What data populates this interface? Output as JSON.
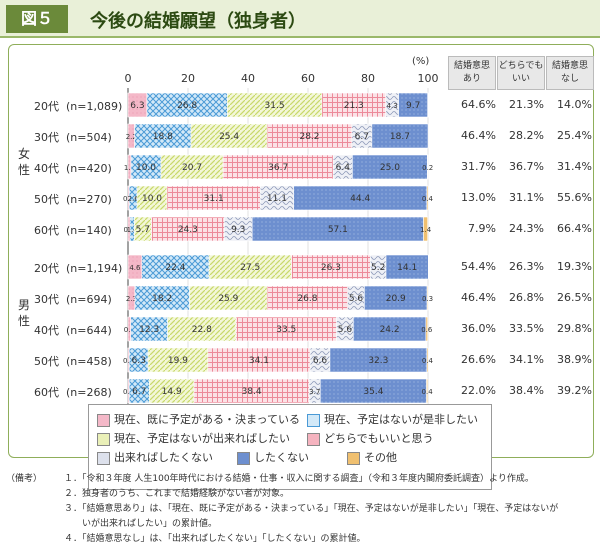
{
  "header": {
    "figure_label": "図５",
    "title": "今後の結婚願望（独身者）"
  },
  "columns": {
    "unit": "(%)",
    "yes": [
      "結婚意思",
      "あり"
    ],
    "neutral": [
      "どちらでも",
      "いい"
    ],
    "no": [
      "結婚意思",
      "なし"
    ]
  },
  "groups": {
    "female": [
      "女",
      "性"
    ],
    "male": [
      "男",
      "性"
    ]
  },
  "colors": {
    "planned": "#f4b8c8",
    "want": "#5aa9e0",
    "ifpossible": "#dce89a",
    "either": "#f08c9c",
    "notmuch": "#b7c0d6",
    "no": "#6d8fcf",
    "other": "#f0c070"
  },
  "chart_data": {
    "type": "stacked-bar-horizontal",
    "xlim": [
      0,
      100
    ],
    "xticks": [
      "0",
      "20",
      "40",
      "60",
      "80",
      "100"
    ],
    "series": [
      {
        "key": "planned",
        "name": "現在、既に予定がある・決まっている"
      },
      {
        "key": "want",
        "name": "現在、予定はないが是非したい"
      },
      {
        "key": "ifpossible",
        "name": "現在、予定はないが出来ればしたい"
      },
      {
        "key": "either",
        "name": "どちらでもいいと思う"
      },
      {
        "key": "notmuch",
        "name": "出来ればしたくない"
      },
      {
        "key": "no",
        "name": "したくない"
      },
      {
        "key": "other",
        "name": "その他"
      }
    ],
    "rows": [
      {
        "age": "20代",
        "n": "(n=1,089)",
        "values": [
          6.3,
          26.8,
          31.5,
          21.3,
          4.3,
          9.7,
          0.1
        ],
        "labels": [
          "6.3",
          "26.8",
          "31.5",
          "21.3",
          "4.3",
          "9.7",
          ""
        ],
        "summary": [
          "64.6%",
          "21.3%",
          "14.0%"
        ]
      },
      {
        "age": "30代",
        "n": "(n=504)",
        "values": [
          2.2,
          18.8,
          25.4,
          28.2,
          6.7,
          18.7,
          0
        ],
        "labels": [
          "2.2",
          "18.8",
          "25.4",
          "28.2",
          "6.7",
          "18.7",
          ""
        ],
        "summary": [
          "46.4%",
          "28.2%",
          "25.4%"
        ]
      },
      {
        "age": "40代",
        "n": "(n=420)",
        "values": [
          1.0,
          10.0,
          20.7,
          36.7,
          6.4,
          25.0,
          0.2
        ],
        "labels": [
          "1.0",
          "10.0",
          "20.7",
          "36.7",
          "6.4",
          "25.0",
          "0.2"
        ],
        "summary": [
          "31.7%",
          "36.7%",
          "31.4%"
        ]
      },
      {
        "age": "50代",
        "n": "(n=270)",
        "values": [
          0.4,
          2.6,
          10.0,
          31.1,
          11.1,
          44.4,
          0.4
        ],
        "labels": [
          "0.4",
          "2.6",
          "10.0",
          "31.1",
          "11.1",
          "44.4",
          "0.4"
        ],
        "summary": [
          "13.0%",
          "31.1%",
          "55.6%"
        ]
      },
      {
        "age": "60代",
        "n": "(n=140)",
        "values": [
          0.7,
          1.4,
          5.7,
          24.3,
          9.3,
          57.1,
          1.4
        ],
        "labels": [
          "0.7",
          "1.4",
          "5.7",
          "24.3",
          "9.3",
          "57.1",
          "1.4"
        ],
        "summary": [
          "7.9%",
          "24.3%",
          "66.4%"
        ]
      },
      {
        "age": "20代",
        "n": "(n=1,194)",
        "values": [
          4.6,
          22.4,
          27.5,
          26.3,
          5.2,
          14.1,
          0
        ],
        "labels": [
          "4.6",
          "22.4",
          "27.5",
          "26.3",
          "5.2",
          "14.1",
          ""
        ],
        "summary": [
          "54.4%",
          "26.3%",
          "19.3%"
        ]
      },
      {
        "age": "30代",
        "n": "(n=694)",
        "values": [
          2.3,
          18.2,
          25.9,
          26.8,
          5.6,
          20.9,
          0.3
        ],
        "labels": [
          "2.3",
          "18.2",
          "25.9",
          "26.8",
          "5.6",
          "20.9",
          "0.3"
        ],
        "summary": [
          "46.4%",
          "26.8%",
          "26.5%"
        ]
      },
      {
        "age": "40代",
        "n": "(n=644)",
        "values": [
          0.9,
          12.3,
          22.8,
          33.5,
          5.6,
          24.2,
          0.6
        ],
        "labels": [
          "0.9",
          "12.3",
          "22.8",
          "33.5",
          "5.6",
          "24.2",
          "0.6"
        ],
        "summary": [
          "36.0%",
          "33.5%",
          "29.8%"
        ]
      },
      {
        "age": "50代",
        "n": "(n=458)",
        "values": [
          0.4,
          6.3,
          19.9,
          34.1,
          6.6,
          32.3,
          0.4
        ],
        "labels": [
          "0.4",
          "6.3",
          "19.9",
          "34.1",
          "6.6",
          "32.3",
          "0.4"
        ],
        "summary": [
          "26.6%",
          "34.1%",
          "38.9%"
        ]
      },
      {
        "age": "60代",
        "n": "(n=268)",
        "values": [
          0.4,
          6.7,
          14.9,
          38.4,
          3.7,
          35.4,
          0.4
        ],
        "labels": [
          "0.4",
          "6.7",
          "14.9",
          "38.4",
          "3.7",
          "35.4",
          "0.4"
        ],
        "summary": [
          "22.0%",
          "38.4%",
          "39.2%"
        ]
      }
    ]
  },
  "notes": {
    "head": "（備考）",
    "lines": [
      "１．「令和３年度 人生100年時代における結婚・仕事・収入に関する調査」（令和３年度内閣府委託調査）より作成。",
      "２．独身者のうち、これまで結婚経験がない者が対象。",
      "３．「結婚意思あり」は、「現在、既に予定がある・決まっている」「現在、予定はないが是非したい」「現在、予定はないが",
      "　　いが出来ればしたい」の累計値。",
      "４．「結婚意思なし」は、「出来ればしたくない」「したくない」の累計値。"
    ]
  }
}
